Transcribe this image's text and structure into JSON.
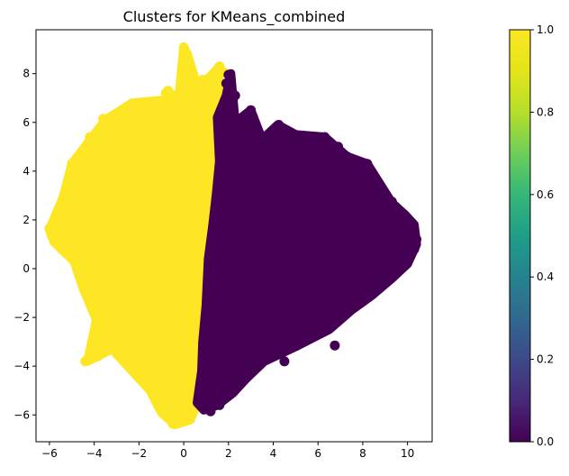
{
  "chart_data": {
    "type": "scatter",
    "title": "Clusters for KMeans_combined",
    "xlabel": "",
    "ylabel": "",
    "xlim": [
      -6.6,
      11.1
    ],
    "ylim": [
      -7.1,
      9.8
    ],
    "x_ticks": [
      -6,
      -4,
      -2,
      0,
      2,
      4,
      6,
      8,
      10
    ],
    "y_ticks": [
      -6,
      -4,
      -2,
      0,
      2,
      4,
      6,
      8
    ],
    "grid": false,
    "colormap": "viridis",
    "colorbar": {
      "range": [
        0.0,
        1.0
      ],
      "ticks": [
        "0.0",
        "0.2",
        "0.4",
        "0.6",
        "0.8",
        "1.0"
      ]
    },
    "colors": {
      "cluster_0": "#440154",
      "cluster_1": "#fde725"
    },
    "series": [
      {
        "cluster": 1,
        "region_outline": [
          [
            -6.0,
            1.6
          ],
          [
            -5.4,
            2.9
          ],
          [
            -5.0,
            4.3
          ],
          [
            -4.0,
            5.5
          ],
          [
            -3.5,
            6.1
          ],
          [
            -2.3,
            6.8
          ],
          [
            -1.0,
            6.9
          ],
          [
            -0.2,
            7.2
          ],
          [
            0.0,
            9.1
          ],
          [
            0.2,
            8.7
          ],
          [
            0.6,
            7.5
          ],
          [
            1.0,
            7.7
          ],
          [
            1.6,
            8.3
          ],
          [
            1.5,
            6.2
          ],
          [
            1.6,
            4.4
          ],
          [
            1.45,
            3.0
          ],
          [
            1.3,
            1.8
          ],
          [
            1.1,
            0.4
          ],
          [
            1.0,
            -1.5
          ],
          [
            0.85,
            -3.0
          ],
          [
            0.8,
            -4.2
          ],
          [
            0.6,
            -5.5
          ],
          [
            0.3,
            -6.2
          ],
          [
            -0.4,
            -6.4
          ],
          [
            -1.0,
            -5.9
          ],
          [
            -1.5,
            -5.0
          ],
          [
            -2.5,
            -4.0
          ],
          [
            -3.2,
            -3.3
          ],
          [
            -4.3,
            -3.8
          ],
          [
            -3.9,
            -2.1
          ],
          [
            -4.5,
            -0.8
          ],
          [
            -4.9,
            0.3
          ],
          [
            -5.8,
            1.1
          ],
          [
            -6.0,
            1.6
          ]
        ],
        "points": [
          [
            0.0,
            9.05
          ],
          [
            0.15,
            8.8
          ],
          [
            0.1,
            8.5
          ],
          [
            1.6,
            8.3
          ],
          [
            1.8,
            8.05
          ],
          [
            0.85,
            7.75
          ],
          [
            1.05,
            7.65
          ],
          [
            -0.7,
            7.3
          ],
          [
            -0.8,
            7.2
          ],
          [
            -3.6,
            6.15
          ],
          [
            -4.2,
            5.4
          ],
          [
            -5.0,
            4.3
          ],
          [
            -5.4,
            2.85
          ],
          [
            -6.0,
            1.65
          ],
          [
            -5.9,
            1.35
          ],
          [
            -4.4,
            -3.8
          ],
          [
            -3.85,
            -3.6
          ],
          [
            -0.5,
            -6.35
          ],
          [
            -0.2,
            -6.3
          ],
          [
            1.55,
            5.4
          ]
        ]
      },
      {
        "cluster": 0,
        "region_outline": [
          [
            1.6,
            4.4
          ],
          [
            1.5,
            6.2
          ],
          [
            1.9,
            7.1
          ],
          [
            2.1,
            8.0
          ],
          [
            2.3,
            6.0
          ],
          [
            3.0,
            6.5
          ],
          [
            3.5,
            5.3
          ],
          [
            4.2,
            5.9
          ],
          [
            5.0,
            5.5
          ],
          [
            6.3,
            5.4
          ],
          [
            7.3,
            4.6
          ],
          [
            8.2,
            4.3
          ],
          [
            9.3,
            2.7
          ],
          [
            9.9,
            2.2
          ],
          [
            10.3,
            1.8
          ],
          [
            10.4,
            1.0
          ],
          [
            10.0,
            0.2
          ],
          [
            9.3,
            -0.4
          ],
          [
            8.4,
            -1.1
          ],
          [
            7.5,
            -1.7
          ],
          [
            6.5,
            -2.5
          ],
          [
            5.0,
            -3.2
          ],
          [
            3.6,
            -3.8
          ],
          [
            2.8,
            -4.5
          ],
          [
            2.2,
            -5.1
          ],
          [
            1.5,
            -5.6
          ],
          [
            0.9,
            -5.8
          ],
          [
            0.6,
            -5.5
          ],
          [
            0.8,
            -4.2
          ],
          [
            0.85,
            -3.0
          ],
          [
            1.0,
            -1.5
          ],
          [
            1.1,
            0.4
          ],
          [
            1.3,
            1.8
          ],
          [
            1.45,
            3.0
          ],
          [
            1.6,
            4.4
          ]
        ],
        "points": [
          [
            2.0,
            7.95
          ],
          [
            1.9,
            7.6
          ],
          [
            2.3,
            7.1
          ],
          [
            1.95,
            7.2
          ],
          [
            3.0,
            6.5
          ],
          [
            2.2,
            6.2
          ],
          [
            4.25,
            5.9
          ],
          [
            3.35,
            5.6
          ],
          [
            6.3,
            5.4
          ],
          [
            6.9,
            5.0
          ],
          [
            7.3,
            4.6
          ],
          [
            8.2,
            4.3
          ],
          [
            9.3,
            2.75
          ],
          [
            10.1,
            1.75
          ],
          [
            10.4,
            1.2
          ],
          [
            10.3,
            0.8
          ],
          [
            6.75,
            -3.15
          ],
          [
            4.5,
            -3.8
          ],
          [
            1.2,
            -5.85
          ],
          [
            1.6,
            -5.6
          ]
        ]
      }
    ]
  }
}
